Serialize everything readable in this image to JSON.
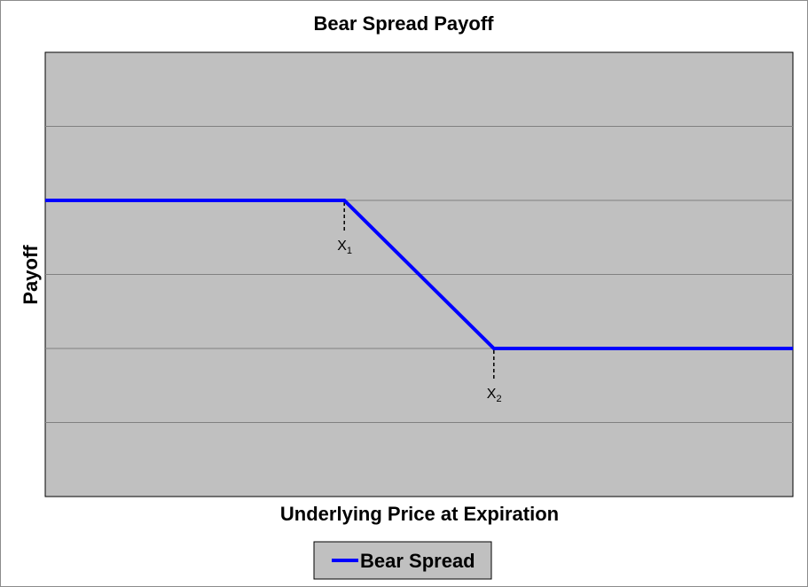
{
  "chart_data": {
    "type": "line",
    "title": "Bear Spread Payoff",
    "xlabel": "Underlying Price at Expiration",
    "ylabel": "Payoff",
    "x_range": [
      0,
      100
    ],
    "y_range": [
      0,
      6
    ],
    "grid": true,
    "legend_position": "bottom",
    "colors": {
      "plot_background": "#c0c0c0",
      "gridline": "#808080",
      "series": "#0000ff"
    },
    "series": [
      {
        "name": "Bear Spread",
        "color": "#0000ff",
        "x": [
          0,
          40,
          60,
          100
        ],
        "y": [
          4,
          4,
          2,
          2
        ]
      }
    ],
    "annotations": [
      {
        "label": "X",
        "subscript": "1",
        "x": 40,
        "y": 4
      },
      {
        "label": "X",
        "subscript": "2",
        "x": 60,
        "y": 2
      }
    ]
  }
}
